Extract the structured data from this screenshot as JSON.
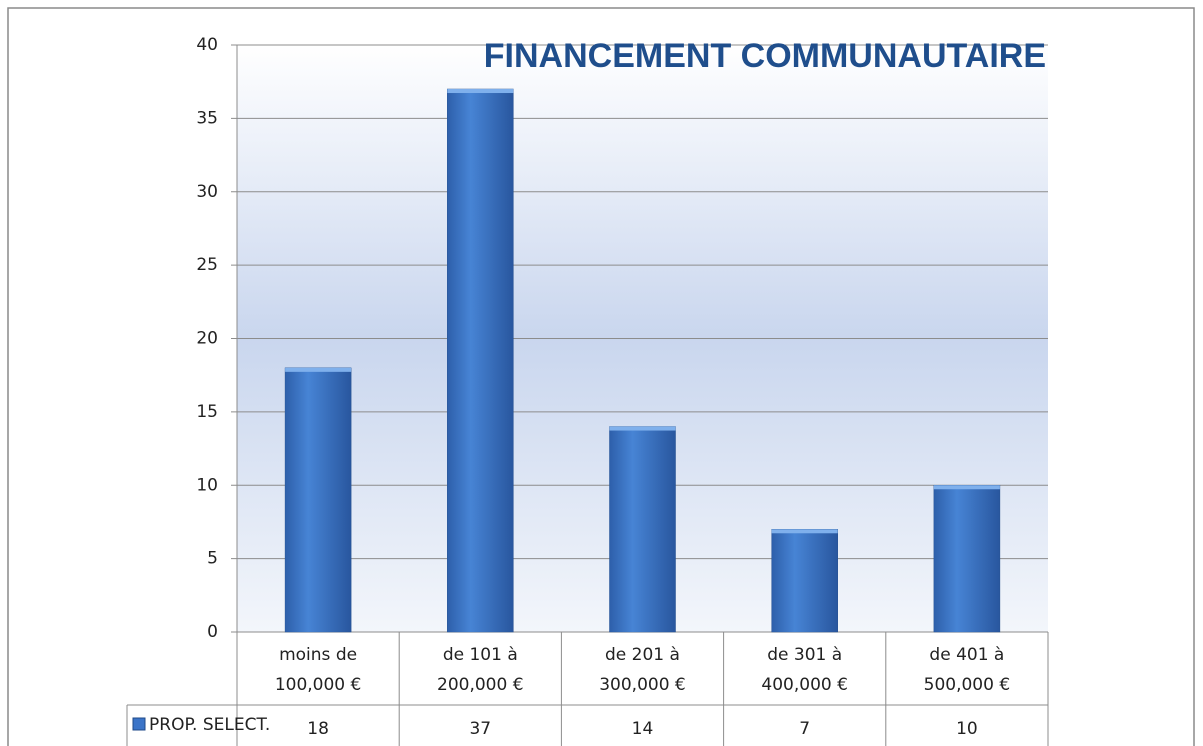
{
  "chart_data": {
    "type": "bar",
    "title": "FINANCEMENT COMMUNAUTAIRE",
    "categories": [
      "moins de 100,000 €",
      "de 101 à 200,000 €",
      "de 201 à 300,000 €",
      "de 301 à 400,000 €",
      "de 401 à 500,000 €"
    ],
    "series": [
      {
        "name": "PROP. SELECT.",
        "color": "#3b74c8",
        "values": [
          18,
          37,
          14,
          7,
          10
        ]
      }
    ],
    "ylim": [
      0,
      40
    ],
    "yticks": [
      0,
      5,
      10,
      15,
      20,
      25,
      30,
      35,
      40
    ],
    "grid": true,
    "data_table": true
  }
}
